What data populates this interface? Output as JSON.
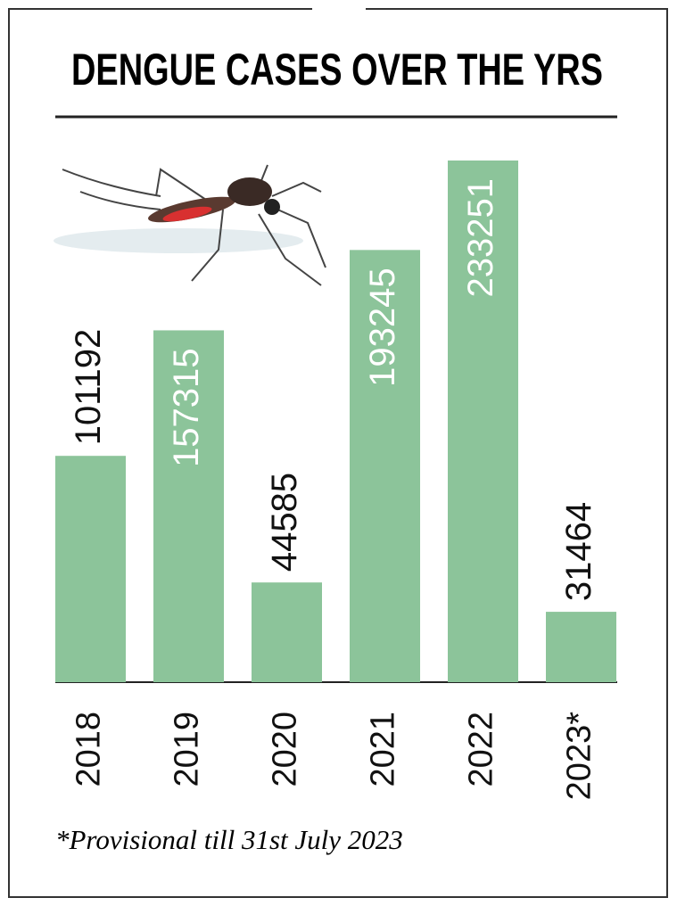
{
  "chart_data": {
    "type": "bar",
    "title": "DENGUE CASES OVER THE YRS",
    "categories": [
      "2018",
      "2019",
      "2020",
      "2021",
      "2022",
      "2023*"
    ],
    "values": [
      101192,
      157315,
      44585,
      193245,
      233251,
      31464
    ],
    "color": "#8cc49a",
    "footnote": "*Provisional till 31st July 2023"
  }
}
